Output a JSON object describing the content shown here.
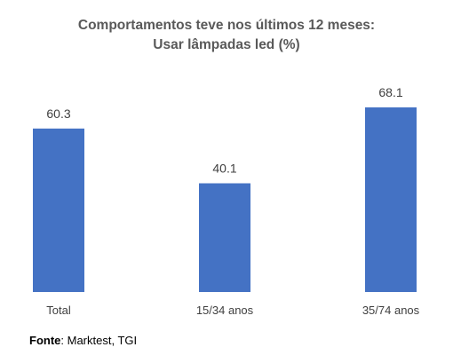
{
  "chart_data": {
    "type": "bar",
    "title_lines": [
      "Comportamentos teve nos últimos 12 meses:",
      "Usar lâmpadas led (%)"
    ],
    "categories": [
      "Total",
      "15/34 anos",
      "35/74 anos"
    ],
    "values": [
      60.3,
      40.1,
      68.1
    ],
    "value_labels": [
      "60.3",
      "40.1",
      "68.1"
    ],
    "ylim": [
      0,
      75
    ],
    "grid": false,
    "bar_color": "#4472c4"
  },
  "source": {
    "label": "Fonte",
    "text": ": Marktest, TGI"
  }
}
